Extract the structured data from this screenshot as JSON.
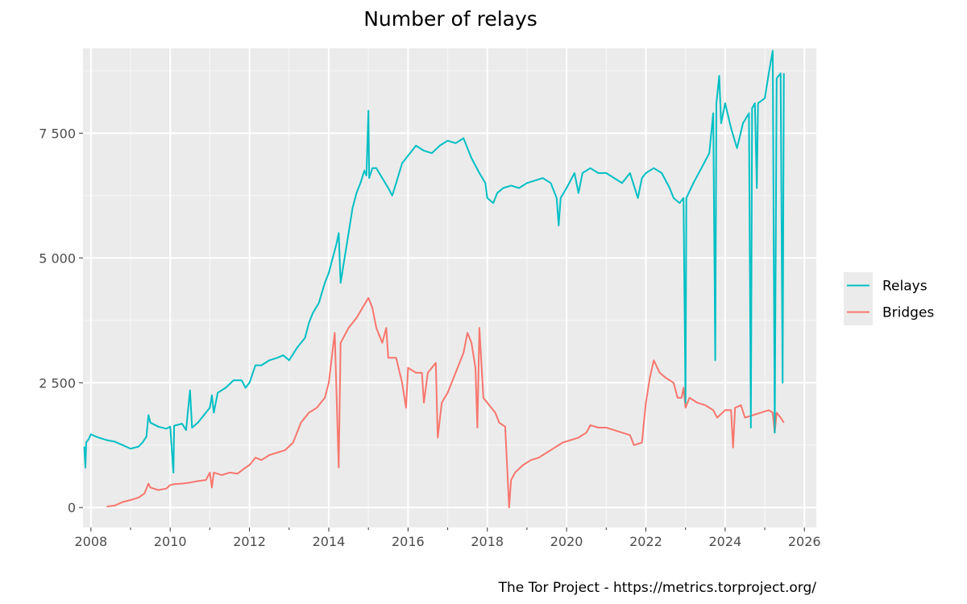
{
  "chart_data": {
    "type": "line",
    "title": "Number of relays",
    "xlabel": "",
    "ylabel": "",
    "caption": "The Tor Project - https://metrics.torproject.org/",
    "xlim": [
      2007.8,
      2026.3
    ],
    "ylim": [
      -400,
      9200
    ],
    "x_ticks": [
      2008,
      2010,
      2012,
      2014,
      2016,
      2018,
      2020,
      2022,
      2024,
      2026
    ],
    "x_tick_labels": [
      "2008",
      "2010",
      "2012",
      "2014",
      "2016",
      "2018",
      "2020",
      "2022",
      "2024",
      "2026"
    ],
    "y_ticks": [
      0,
      2500,
      5000,
      7500
    ],
    "y_tick_labels": [
      "0",
      "2 500",
      "5 000",
      "7 500"
    ],
    "grid": true,
    "legend_position": "right",
    "series": [
      {
        "name": "Relays",
        "color": "#00bfc4",
        "points": [
          [
            2007.83,
            1220
          ],
          [
            2007.86,
            800
          ],
          [
            2007.88,
            1300
          ],
          [
            2007.95,
            1380
          ],
          [
            2008.0,
            1470
          ],
          [
            2008.1,
            1430
          ],
          [
            2008.2,
            1400
          ],
          [
            2008.4,
            1350
          ],
          [
            2008.6,
            1320
          ],
          [
            2008.8,
            1250
          ],
          [
            2009.0,
            1180
          ],
          [
            2009.2,
            1220
          ],
          [
            2009.3,
            1300
          ],
          [
            2009.4,
            1420
          ],
          [
            2009.45,
            1850
          ],
          [
            2009.5,
            1700
          ],
          [
            2009.7,
            1620
          ],
          [
            2009.9,
            1580
          ],
          [
            2010.0,
            1620
          ],
          [
            2010.08,
            700
          ],
          [
            2010.1,
            1640
          ],
          [
            2010.3,
            1680
          ],
          [
            2010.4,
            1550
          ],
          [
            2010.5,
            2350
          ],
          [
            2010.55,
            1600
          ],
          [
            2010.7,
            1700
          ],
          [
            2010.9,
            1900
          ],
          [
            2011.0,
            2000
          ],
          [
            2011.05,
            2250
          ],
          [
            2011.1,
            1900
          ],
          [
            2011.2,
            2300
          ],
          [
            2011.4,
            2400
          ],
          [
            2011.6,
            2550
          ],
          [
            2011.8,
            2550
          ],
          [
            2011.9,
            2400
          ],
          [
            2012.0,
            2500
          ],
          [
            2012.15,
            2850
          ],
          [
            2012.3,
            2850
          ],
          [
            2012.5,
            2950
          ],
          [
            2012.7,
            3000
          ],
          [
            2012.85,
            3050
          ],
          [
            2013.0,
            2950
          ],
          [
            2013.2,
            3200
          ],
          [
            2013.4,
            3400
          ],
          [
            2013.5,
            3700
          ],
          [
            2013.6,
            3900
          ],
          [
            2013.75,
            4100
          ],
          [
            2013.9,
            4500
          ],
          [
            2014.0,
            4700
          ],
          [
            2014.1,
            5000
          ],
          [
            2014.2,
            5300
          ],
          [
            2014.25,
            5500
          ],
          [
            2014.3,
            4500
          ],
          [
            2014.4,
            5000
          ],
          [
            2014.5,
            5500
          ],
          [
            2014.6,
            6000
          ],
          [
            2014.7,
            6300
          ],
          [
            2014.8,
            6500
          ],
          [
            2014.9,
            6750
          ],
          [
            2014.95,
            6650
          ],
          [
            2015.0,
            7950
          ],
          [
            2015.02,
            6600
          ],
          [
            2015.1,
            6800
          ],
          [
            2015.2,
            6800
          ],
          [
            2015.35,
            6600
          ],
          [
            2015.5,
            6400
          ],
          [
            2015.6,
            6250
          ],
          [
            2015.7,
            6500
          ],
          [
            2015.85,
            6900
          ],
          [
            2016.0,
            7050
          ],
          [
            2016.2,
            7250
          ],
          [
            2016.4,
            7150
          ],
          [
            2016.6,
            7100
          ],
          [
            2016.8,
            7250
          ],
          [
            2017.0,
            7350
          ],
          [
            2017.2,
            7300
          ],
          [
            2017.4,
            7400
          ],
          [
            2017.5,
            7200
          ],
          [
            2017.6,
            7000
          ],
          [
            2017.8,
            6700
          ],
          [
            2017.95,
            6500
          ],
          [
            2018.0,
            6200
          ],
          [
            2018.15,
            6100
          ],
          [
            2018.25,
            6300
          ],
          [
            2018.4,
            6400
          ],
          [
            2018.6,
            6450
          ],
          [
            2018.8,
            6400
          ],
          [
            2019.0,
            6500
          ],
          [
            2019.2,
            6550
          ],
          [
            2019.4,
            6600
          ],
          [
            2019.6,
            6500
          ],
          [
            2019.75,
            6200
          ],
          [
            2019.8,
            5650
          ],
          [
            2019.85,
            6200
          ],
          [
            2020.0,
            6400
          ],
          [
            2020.2,
            6700
          ],
          [
            2020.3,
            6300
          ],
          [
            2020.4,
            6700
          ],
          [
            2020.6,
            6800
          ],
          [
            2020.8,
            6700
          ],
          [
            2021.0,
            6700
          ],
          [
            2021.2,
            6600
          ],
          [
            2021.4,
            6500
          ],
          [
            2021.6,
            6700
          ],
          [
            2021.8,
            6200
          ],
          [
            2021.9,
            6600
          ],
          [
            2022.0,
            6700
          ],
          [
            2022.2,
            6800
          ],
          [
            2022.4,
            6700
          ],
          [
            2022.6,
            6400
          ],
          [
            2022.7,
            6200
          ],
          [
            2022.85,
            6100
          ],
          [
            2022.95,
            6200
          ],
          [
            2023.0,
            2100
          ],
          [
            2023.02,
            6200
          ],
          [
            2023.2,
            6500
          ],
          [
            2023.4,
            6800
          ],
          [
            2023.6,
            7100
          ],
          [
            2023.7,
            7900
          ],
          [
            2023.75,
            2950
          ],
          [
            2023.78,
            8100
          ],
          [
            2023.85,
            8650
          ],
          [
            2023.9,
            7700
          ],
          [
            2024.0,
            8100
          ],
          [
            2024.15,
            7600
          ],
          [
            2024.3,
            7200
          ],
          [
            2024.45,
            7700
          ],
          [
            2024.6,
            7900
          ],
          [
            2024.65,
            1600
          ],
          [
            2024.68,
            8000
          ],
          [
            2024.75,
            8100
          ],
          [
            2024.8,
            6400
          ],
          [
            2024.83,
            8100
          ],
          [
            2025.0,
            8200
          ],
          [
            2025.1,
            8700
          ],
          [
            2025.2,
            9150
          ],
          [
            2025.25,
            1500
          ],
          [
            2025.3,
            8600
          ],
          [
            2025.4,
            8700
          ],
          [
            2025.45,
            2500
          ],
          [
            2025.48,
            8700
          ]
        ]
      },
      {
        "name": "Bridges",
        "color": "#f8766d",
        "points": [
          [
            2008.4,
            20
          ],
          [
            2008.6,
            40
          ],
          [
            2008.8,
            110
          ],
          [
            2009.0,
            150
          ],
          [
            2009.2,
            200
          ],
          [
            2009.35,
            280
          ],
          [
            2009.45,
            480
          ],
          [
            2009.5,
            400
          ],
          [
            2009.7,
            350
          ],
          [
            2009.9,
            380
          ],
          [
            2010.0,
            450
          ],
          [
            2010.1,
            470
          ],
          [
            2010.3,
            480
          ],
          [
            2010.5,
            500
          ],
          [
            2010.7,
            530
          ],
          [
            2010.9,
            550
          ],
          [
            2011.0,
            700
          ],
          [
            2011.05,
            400
          ],
          [
            2011.1,
            700
          ],
          [
            2011.3,
            650
          ],
          [
            2011.5,
            700
          ],
          [
            2011.7,
            680
          ],
          [
            2011.9,
            800
          ],
          [
            2012.0,
            850
          ],
          [
            2012.15,
            1000
          ],
          [
            2012.3,
            950
          ],
          [
            2012.5,
            1050
          ],
          [
            2012.7,
            1100
          ],
          [
            2012.9,
            1150
          ],
          [
            2013.1,
            1300
          ],
          [
            2013.3,
            1700
          ],
          [
            2013.5,
            1900
          ],
          [
            2013.7,
            2000
          ],
          [
            2013.9,
            2200
          ],
          [
            2014.0,
            2500
          ],
          [
            2014.15,
            3500
          ],
          [
            2014.25,
            800
          ],
          [
            2014.3,
            3300
          ],
          [
            2014.5,
            3600
          ],
          [
            2014.7,
            3800
          ],
          [
            2014.85,
            4000
          ],
          [
            2015.0,
            4200
          ],
          [
            2015.1,
            4000
          ],
          [
            2015.2,
            3600
          ],
          [
            2015.35,
            3300
          ],
          [
            2015.45,
            3600
          ],
          [
            2015.5,
            3000
          ],
          [
            2015.7,
            3000
          ],
          [
            2015.85,
            2500
          ],
          [
            2015.95,
            2000
          ],
          [
            2016.0,
            2800
          ],
          [
            2016.2,
            2700
          ],
          [
            2016.35,
            2700
          ],
          [
            2016.4,
            2100
          ],
          [
            2016.5,
            2700
          ],
          [
            2016.7,
            2900
          ],
          [
            2016.75,
            1400
          ],
          [
            2016.85,
            2100
          ],
          [
            2017.0,
            2300
          ],
          [
            2017.2,
            2700
          ],
          [
            2017.4,
            3100
          ],
          [
            2017.5,
            3500
          ],
          [
            2017.6,
            3300
          ],
          [
            2017.7,
            2800
          ],
          [
            2017.75,
            1600
          ],
          [
            2017.8,
            3600
          ],
          [
            2017.9,
            2200
          ],
          [
            2018.0,
            2100
          ],
          [
            2018.2,
            1900
          ],
          [
            2018.3,
            1700
          ],
          [
            2018.45,
            1620
          ],
          [
            2018.55,
            0
          ],
          [
            2018.6,
            550
          ],
          [
            2018.7,
            700
          ],
          [
            2018.9,
            850
          ],
          [
            2019.1,
            950
          ],
          [
            2019.3,
            1000
          ],
          [
            2019.5,
            1100
          ],
          [
            2019.7,
            1200
          ],
          [
            2019.9,
            1300
          ],
          [
            2020.1,
            1350
          ],
          [
            2020.3,
            1400
          ],
          [
            2020.5,
            1500
          ],
          [
            2020.6,
            1650
          ],
          [
            2020.8,
            1600
          ],
          [
            2021.0,
            1600
          ],
          [
            2021.2,
            1550
          ],
          [
            2021.4,
            1500
          ],
          [
            2021.6,
            1450
          ],
          [
            2021.7,
            1250
          ],
          [
            2021.9,
            1300
          ],
          [
            2022.0,
            2100
          ],
          [
            2022.1,
            2600
          ],
          [
            2022.2,
            2950
          ],
          [
            2022.35,
            2700
          ],
          [
            2022.5,
            2600
          ],
          [
            2022.7,
            2500
          ],
          [
            2022.8,
            2200
          ],
          [
            2022.9,
            2200
          ],
          [
            2022.95,
            2400
          ],
          [
            2023.0,
            2000
          ],
          [
            2023.1,
            2200
          ],
          [
            2023.3,
            2100
          ],
          [
            2023.5,
            2050
          ],
          [
            2023.7,
            1950
          ],
          [
            2023.8,
            1800
          ],
          [
            2024.0,
            1950
          ],
          [
            2024.15,
            1950
          ],
          [
            2024.2,
            1200
          ],
          [
            2024.25,
            2000
          ],
          [
            2024.4,
            2050
          ],
          [
            2024.5,
            1800
          ],
          [
            2024.7,
            1850
          ],
          [
            2024.9,
            1900
          ],
          [
            2025.1,
            1950
          ],
          [
            2025.2,
            1900
          ],
          [
            2025.25,
            1500
          ],
          [
            2025.3,
            1900
          ],
          [
            2025.4,
            1800
          ],
          [
            2025.48,
            1700
          ]
        ]
      }
    ]
  }
}
